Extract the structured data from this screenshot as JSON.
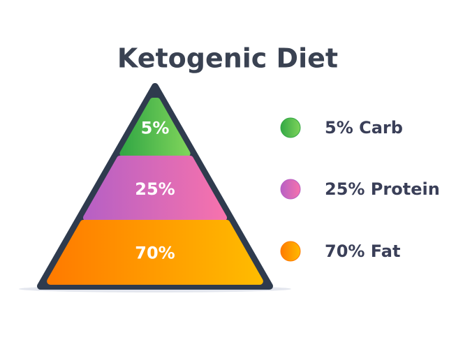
{
  "chart_data": {
    "type": "pyramid",
    "title": "Ketogenic Diet",
    "categories": [
      "5% Carb",
      "25% Protein",
      "70% Fat"
    ],
    "values": [
      5,
      25,
      70
    ],
    "value_labels": [
      "5%",
      "25%",
      "70%"
    ],
    "colors": [
      "#34a845",
      "#b760c4",
      "#ff7b00"
    ],
    "colors_end": [
      "#7dd35a",
      "#f672ad",
      "#ffbb00"
    ]
  }
}
